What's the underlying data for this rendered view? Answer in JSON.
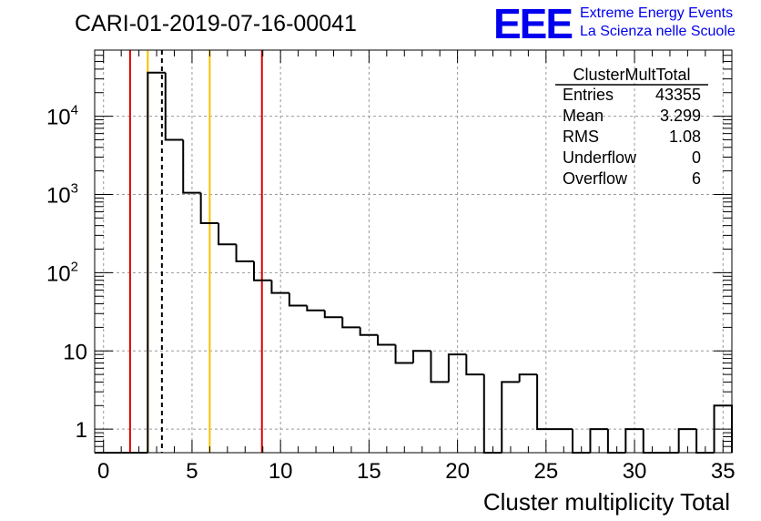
{
  "chart_data": {
    "type": "bar",
    "histogram_style": "step",
    "title": "CARI-01-2019-07-16-00041",
    "xlabel": "Cluster multiplicity Total",
    "ylabel": "",
    "xlim": [
      -0.5,
      35.5
    ],
    "ylog": true,
    "ylim": [
      0.5,
      70000
    ],
    "grid": true,
    "x_ticks": [
      0,
      5,
      10,
      15,
      20,
      25,
      30,
      35
    ],
    "y_ticks": [
      {
        "value": 1,
        "label": "1"
      },
      {
        "value": 10,
        "label": "10"
      },
      {
        "value": 100,
        "label": "10",
        "exp": "2"
      },
      {
        "value": 1000,
        "label": "10",
        "exp": "3"
      },
      {
        "value": 10000,
        "label": "10",
        "exp": "4"
      }
    ],
    "bin_edges_start": -0.5,
    "bin_width": 1,
    "values": [
      0,
      0,
      0,
      36000,
      5000,
      1050,
      430,
      230,
      140,
      80,
      55,
      38,
      33,
      27,
      20,
      16,
      12,
      7,
      10,
      4,
      9,
      5,
      0,
      4,
      5,
      1,
      1,
      0,
      1,
      0,
      1,
      0,
      0,
      1,
      0,
      2
    ],
    "vertical_lines": [
      {
        "x": 1.5,
        "color": "#dd0000",
        "style": "solid"
      },
      {
        "x": 2.5,
        "color": "#f2c200",
        "style": "solid"
      },
      {
        "x": 3.299,
        "color": "#000000",
        "style": "dashed"
      },
      {
        "x": 6.0,
        "color": "#f2c200",
        "style": "solid"
      },
      {
        "x": 8.95,
        "color": "#dd0000",
        "style": "solid"
      }
    ],
    "stats": {
      "title": "ClusterMultTotal",
      "rows": [
        {
          "label": "Entries",
          "value": "43355"
        },
        {
          "label": "Mean",
          "value": "3.299"
        },
        {
          "label": "RMS",
          "value": "1.08"
        },
        {
          "label": "Underflow",
          "value": "0"
        },
        {
          "label": "Overflow",
          "value": "6"
        }
      ]
    }
  },
  "logo": {
    "mark": "EEE",
    "line1": "Extreme Energy Events",
    "line2": "La Scienza nelle Scuole",
    "color": "#0000ee"
  }
}
